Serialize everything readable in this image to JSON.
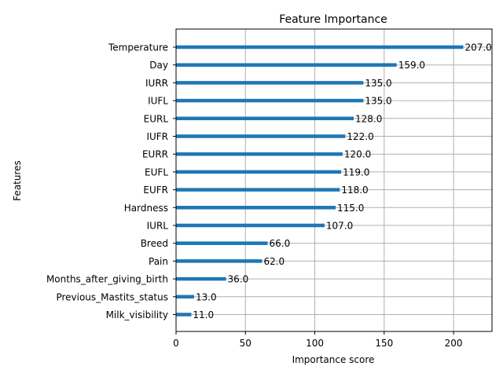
{
  "chart_data": {
    "type": "bar",
    "orientation": "horizontal",
    "title": "Feature Importance",
    "xlabel": "Importance score",
    "ylabel": "Features",
    "xlim": [
      0,
      227.7
    ],
    "xticks": [
      0,
      50,
      100,
      150,
      200
    ],
    "grid": true,
    "bar_color": "#1f77b4",
    "categories": [
      "Temperature",
      "Day",
      "IURR",
      "IUFL",
      "EURL",
      "IUFR",
      "EURR",
      "EUFL",
      "EUFR",
      "Hardness",
      "IURL",
      "Breed",
      "Pain",
      "Months_after_giving_birth",
      "Previous_Mastits_status",
      "Milk_visibility"
    ],
    "values": [
      207,
      159,
      135,
      135,
      128,
      122,
      120,
      119,
      118,
      115,
      107,
      66,
      62,
      36,
      13,
      11
    ],
    "value_labels": [
      "207.0",
      "159.0",
      "135.0",
      "135.0",
      "128.0",
      "122.0",
      "120.0",
      "119.0",
      "118.0",
      "115.0",
      "107.0",
      "66.0",
      "62.0",
      "36.0",
      "13.0",
      "11.0"
    ]
  }
}
